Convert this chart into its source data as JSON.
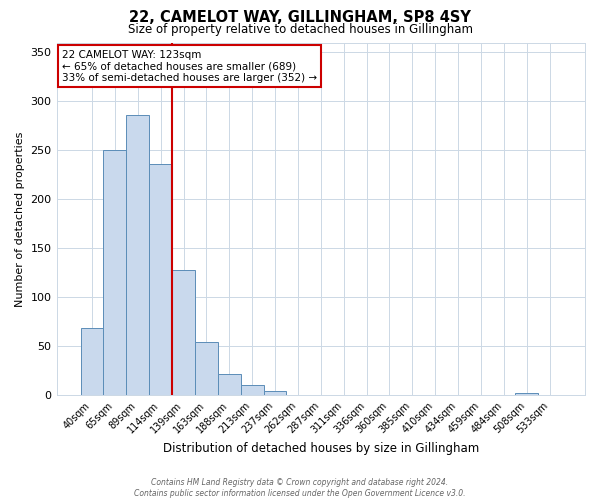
{
  "title": "22, CAMELOT WAY, GILLINGHAM, SP8 4SY",
  "subtitle": "Size of property relative to detached houses in Gillingham",
  "xlabel": "Distribution of detached houses by size in Gillingham",
  "ylabel": "Number of detached properties",
  "bar_labels": [
    "40sqm",
    "65sqm",
    "89sqm",
    "114sqm",
    "139sqm",
    "163sqm",
    "188sqm",
    "213sqm",
    "237sqm",
    "262sqm",
    "287sqm",
    "311sqm",
    "336sqm",
    "360sqm",
    "385sqm",
    "410sqm",
    "434sqm",
    "459sqm",
    "484sqm",
    "508sqm",
    "533sqm"
  ],
  "bar_values": [
    69,
    250,
    286,
    236,
    128,
    54,
    22,
    10,
    4,
    0,
    0,
    0,
    0,
    0,
    0,
    0,
    0,
    0,
    0,
    2,
    0
  ],
  "bar_color": "#c9d9ed",
  "bar_edge_color": "#5b8db8",
  "vline_color": "#cc0000",
  "vline_x_idx": 3,
  "ylim": [
    0,
    360
  ],
  "yticks": [
    0,
    50,
    100,
    150,
    200,
    250,
    300,
    350
  ],
  "annotation_title": "22 CAMELOT WAY: 123sqm",
  "annotation_line1": "← 65% of detached houses are smaller (689)",
  "annotation_line2": "33% of semi-detached houses are larger (352) →",
  "annotation_box_color": "#ffffff",
  "annotation_box_edgecolor": "#cc0000",
  "footer1": "Contains HM Land Registry data © Crown copyright and database right 2024.",
  "footer2": "Contains public sector information licensed under the Open Government Licence v3.0.",
  "background_color": "#ffffff",
  "grid_color": "#ccd8e5"
}
